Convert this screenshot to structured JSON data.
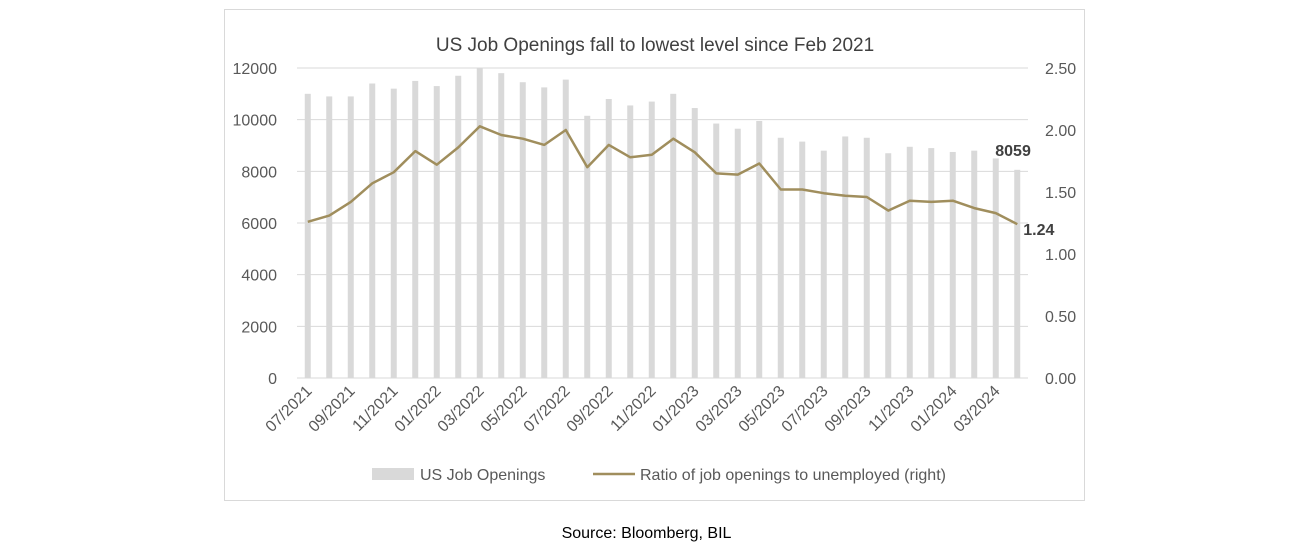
{
  "chart_data": {
    "type": "bar+line",
    "title": "US Job Openings fall to lowest level since Feb 2021",
    "categories": [
      "07/2021",
      "08/2021",
      "09/2021",
      "10/2021",
      "11/2021",
      "12/2021",
      "01/2022",
      "02/2022",
      "03/2022",
      "04/2022",
      "05/2022",
      "06/2022",
      "07/2022",
      "08/2022",
      "09/2022",
      "10/2022",
      "11/2022",
      "12/2022",
      "01/2023",
      "02/2023",
      "03/2023",
      "04/2023",
      "05/2023",
      "06/2023",
      "07/2023",
      "08/2023",
      "09/2023",
      "10/2023",
      "11/2023",
      "12/2023",
      "01/2024",
      "02/2024",
      "03/2024",
      "04/2024"
    ],
    "x_tick_labels": [
      "07/2021",
      "09/2021",
      "11/2021",
      "01/2022",
      "03/2022",
      "05/2022",
      "07/2022",
      "09/2022",
      "11/2022",
      "01/2023",
      "03/2023",
      "05/2023",
      "07/2023",
      "09/2023",
      "11/2023",
      "01/2024",
      "03/2024"
    ],
    "series": [
      {
        "name": "US Job Openings",
        "type": "bar",
        "axis": "left",
        "color": "#d9d9d9",
        "values": [
          11000,
          10900,
          10900,
          11400,
          11200,
          11500,
          11300,
          11700,
          12000,
          11800,
          11450,
          11250,
          11550,
          10150,
          10800,
          10550,
          10700,
          11000,
          10450,
          9850,
          9650,
          9950,
          9300,
          9150,
          8800,
          9350,
          9300,
          8700,
          8950,
          8900,
          8750,
          8800,
          8500,
          8059
        ]
      },
      {
        "name": "Ratio of job openings to unemployed (right)",
        "type": "line",
        "axis": "right",
        "color": "#a08e5d",
        "values": [
          1.26,
          1.31,
          1.42,
          1.57,
          1.66,
          1.83,
          1.72,
          1.86,
          2.03,
          1.96,
          1.93,
          1.88,
          2.0,
          1.7,
          1.88,
          1.78,
          1.8,
          1.93,
          1.82,
          1.65,
          1.64,
          1.73,
          1.52,
          1.52,
          1.49,
          1.47,
          1.46,
          1.35,
          1.43,
          1.42,
          1.43,
          1.37,
          1.33,
          1.24
        ]
      }
    ],
    "y_left": {
      "ylim": [
        0,
        12000
      ],
      "ticks": [
        "0",
        "2000",
        "4000",
        "6000",
        "8000",
        "10000",
        "12000"
      ]
    },
    "y_right": {
      "ylim": [
        0,
        2.5
      ],
      "ticks": [
        "0.00",
        "0.50",
        "1.00",
        "1.50",
        "2.00",
        "2.50"
      ]
    },
    "annotations": {
      "last_bar": "8059",
      "last_ratio": "1.24"
    },
    "legend_position": "bottom",
    "grid": true,
    "grid_color": "#d9d9d9",
    "text_color": "#595959"
  },
  "source": "Source: Bloomberg, BIL"
}
